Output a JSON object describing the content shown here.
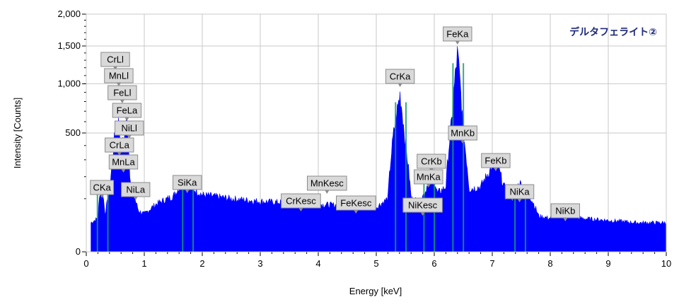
{
  "chart_data": {
    "type": "area",
    "title": "デルタフェライト②",
    "xlabel": "Energy [keV]",
    "ylabel": "Intensity [Counts]",
    "xlim": [
      0,
      10
    ],
    "ylim": [
      0,
      2000
    ],
    "y_scale": "sqrt",
    "grid": true,
    "x_ticks": [
      0,
      1,
      2,
      3,
      4,
      5,
      6,
      7,
      8,
      9,
      10
    ],
    "x_tick_labels": [
      "0",
      "1",
      "2",
      "3",
      "4",
      "5",
      "6",
      "7",
      "8",
      "9",
      "10"
    ],
    "y_ticks": [
      0,
      500,
      1000,
      1500,
      2000
    ],
    "y_tick_labels": [
      "0",
      "500",
      "1,000",
      "1,500",
      "2,000"
    ],
    "colors": {
      "spectrum": "#0000ff",
      "roi": "#1a9a6a",
      "label_bg": "#d9d9d9",
      "title": "#1f2a7a"
    },
    "series": [
      {
        "x": [
          0.08,
          0.2,
          0.26,
          0.32,
          0.4,
          0.45,
          0.5,
          0.55,
          0.6,
          0.65,
          0.7,
          0.75,
          0.8,
          0.85,
          0.9,
          1.0,
          1.2,
          1.5,
          1.7,
          1.74,
          1.78,
          2.0,
          2.5,
          3.0,
          3.5,
          4.0,
          4.5,
          5.0,
          5.2,
          5.3,
          5.41,
          5.5,
          5.6,
          5.75,
          5.85,
          5.95,
          6.05,
          6.2,
          6.3,
          6.4,
          6.5,
          6.6,
          6.8,
          6.95,
          7.06,
          7.2,
          7.35,
          7.47,
          7.6,
          7.8,
          8.0,
          8.26,
          8.5,
          9.0,
          9.5,
          10.0
        ],
        "values": [
          30,
          40,
          180,
          50,
          120,
          300,
          520,
          620,
          380,
          450,
          650,
          220,
          130,
          90,
          60,
          50,
          80,
          110,
          180,
          200,
          150,
          115,
          100,
          90,
          85,
          80,
          75,
          70,
          100,
          500,
          880,
          420,
          100,
          90,
          130,
          240,
          120,
          150,
          600,
          1400,
          500,
          140,
          150,
          230,
          290,
          150,
          100,
          170,
          130,
          45,
          40,
          50,
          40,
          35,
          30,
          30
        ]
      }
    ],
    "annotations": [
      {
        "text": "CrLl",
        "x": 0.5
      },
      {
        "text": "MnLl",
        "x": 0.56
      },
      {
        "text": "FeLl",
        "x": 0.62
      },
      {
        "text": "FeLa",
        "x": 0.7
      },
      {
        "text": "NiLl",
        "x": 0.74
      },
      {
        "text": "CrLa",
        "x": 0.57
      },
      {
        "text": "MnLa",
        "x": 0.64
      },
      {
        "text": "CKa",
        "x": 0.27
      },
      {
        "text": "NiLa",
        "x": 0.85
      },
      {
        "text": "SiKa",
        "x": 1.74
      },
      {
        "text": "CrKesc",
        "x": 3.7
      },
      {
        "text": "MnKesc",
        "x": 4.15
      },
      {
        "text": "FeKesc",
        "x": 4.65
      },
      {
        "text": "CrKa",
        "x": 5.41
      },
      {
        "text": "NiKesc",
        "x": 5.8
      },
      {
        "text": "CrKb",
        "x": 5.95
      },
      {
        "text": "MnKa",
        "x": 5.9
      },
      {
        "text": "FeKa",
        "x": 6.4
      },
      {
        "text": "MnKb",
        "x": 6.49
      },
      {
        "text": "FeKb",
        "x": 7.06
      },
      {
        "text": "NiKa",
        "x": 7.47
      },
      {
        "text": "NiKb",
        "x": 8.26
      }
    ]
  }
}
